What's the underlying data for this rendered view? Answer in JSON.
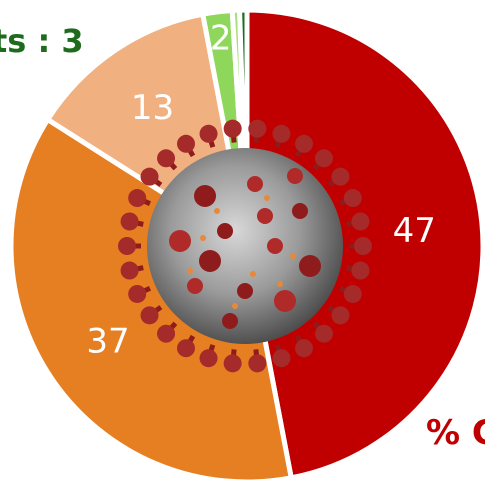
{
  "chart_data": {
    "type": "pie",
    "values": [
      47,
      37,
      13,
      2,
      0.5,
      0.5
    ],
    "data_labels": [
      "47",
      "37",
      "13",
      "2",
      "",
      ""
    ],
    "colors": [
      "#c00000",
      "#e67e22",
      "#f1b080",
      "#8ed75a",
      "#a6e07a",
      "#1e6b1e"
    ],
    "start": "12 o'clock",
    "direction": "clockwise",
    "partial_text_top": "ts : 3",
    "partial_text_bottom": "% C",
    "center_image": "coronavirus-particle"
  }
}
